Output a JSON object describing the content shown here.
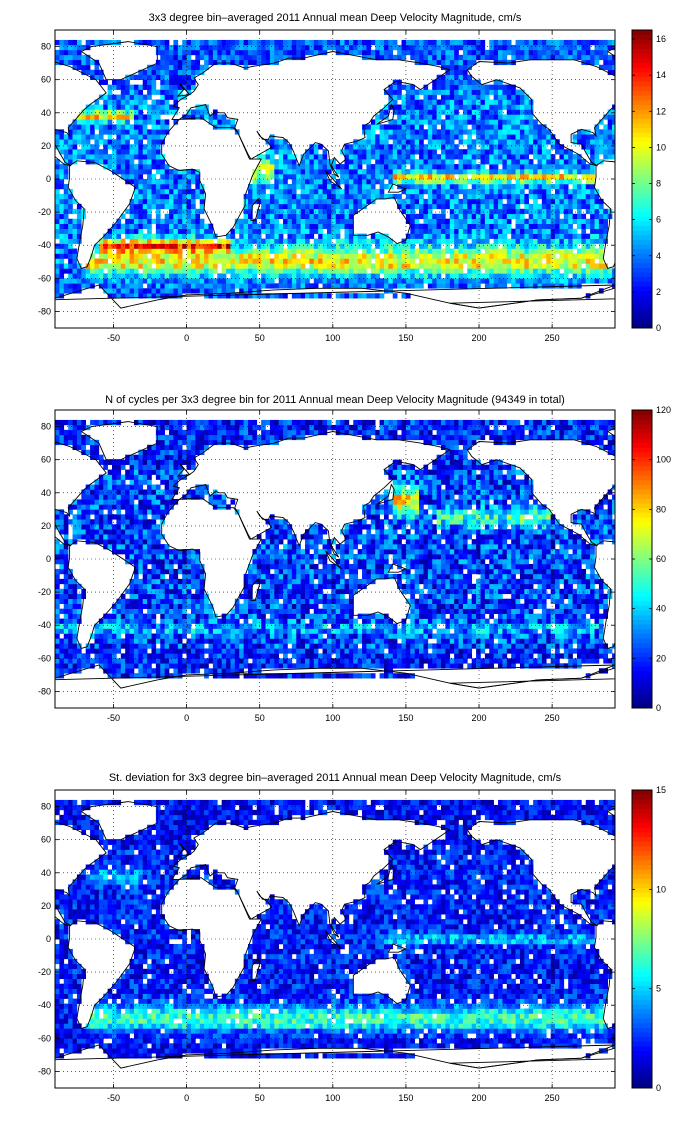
{
  "chart_data": [
    {
      "type": "heatmap",
      "title": "3x3 degree bin–averaged 2011 Annual mean Deep Velocity Magnitude, cm/s",
      "xlim": [
        -90,
        293
      ],
      "ylim": [
        -90,
        90
      ],
      "xticks": [
        -50,
        0,
        50,
        100,
        150,
        200,
        250
      ],
      "yticks": [
        -80,
        -60,
        -40,
        -20,
        0,
        20,
        40,
        60,
        80
      ],
      "xtick_labels": [
        "-50",
        "0",
        "50",
        "100",
        "150",
        "200",
        "250"
      ],
      "ytick_labels": [
        "-80",
        "-60",
        "-40",
        "-20",
        "0",
        "20",
        "40",
        "60",
        "80"
      ],
      "grid": "dotted",
      "colorbar": {
        "min": 0,
        "max": 16.5,
        "ticks": [
          0,
          2,
          4,
          6,
          8,
          10,
          12,
          14,
          16
        ],
        "tick_labels": [
          "0",
          "2",
          "4",
          "6",
          "8",
          "10",
          "12",
          "14",
          "16"
        ],
        "colormap": "jet"
      },
      "cell_size_deg": 3,
      "features": [
        {
          "name": "Antarctic Circumpolar Current",
          "lon": [
            -70,
            290
          ],
          "lat": -50,
          "width": 9,
          "value": 10.5
        },
        {
          "name": "Equatorial Pacific band",
          "lon": [
            140,
            280
          ],
          "lat": 1,
          "width": 3,
          "value": 11
        },
        {
          "name": "North Atlantic band",
          "lon": [
            -75,
            -35
          ],
          "lat": 38,
          "width": 3,
          "value": 11
        },
        {
          "name": "Agulhas / Southwest Atlantic",
          "lon": [
            -60,
            30
          ],
          "lat": -40,
          "width": 4,
          "value": 12
        },
        {
          "name": "Somali current",
          "lon": [
            45,
            60
          ],
          "lat": 5,
          "width": 6,
          "value": 10
        }
      ],
      "background_value": 4,
      "noise": 2.2
    },
    {
      "type": "heatmap",
      "title": "N of cycles per 3x3 degree bin for 2011 Annual mean Deep Velocity Magnitude (94349 in total)",
      "xlim": [
        -90,
        293
      ],
      "ylim": [
        -90,
        90
      ],
      "xticks": [
        -50,
        0,
        50,
        100,
        150,
        200,
        250
      ],
      "yticks": [
        -80,
        -60,
        -40,
        -20,
        0,
        20,
        40,
        60,
        80
      ],
      "xtick_labels": [
        "-50",
        "0",
        "50",
        "100",
        "150",
        "200",
        "250"
      ],
      "ytick_labels": [
        "-80",
        "-60",
        "-40",
        "-20",
        "0",
        "20",
        "40",
        "60",
        "80"
      ],
      "grid": "dotted",
      "colorbar": {
        "min": 0,
        "max": 120,
        "ticks": [
          0,
          20,
          40,
          60,
          80,
          100,
          120
        ],
        "tick_labels": [
          "0",
          "20",
          "40",
          "60",
          "80",
          "100",
          "120"
        ],
        "colormap": "jet"
      },
      "cell_size_deg": 3,
      "features": [
        {
          "name": "Kuroshio region",
          "lon": [
            140,
            160
          ],
          "lat": 35,
          "width": 8,
          "value": 80
        },
        {
          "name": "North Pacific band",
          "lon": [
            170,
            250
          ],
          "lat": 25,
          "width": 6,
          "value": 50
        },
        {
          "name": "Southern Ocean band",
          "lon": [
            -90,
            293
          ],
          "lat": -42,
          "width": 4,
          "value": 35
        }
      ],
      "background_value": 22,
      "noise": 18
    },
    {
      "type": "heatmap",
      "title": "St. deviation for 3x3 degree bin–averaged 2011 Annual mean Deep Velocity Magnitude, cm/s",
      "xlim": [
        -90,
        293
      ],
      "ylim": [
        -90,
        90
      ],
      "xticks": [
        -50,
        0,
        50,
        100,
        150,
        200,
        250
      ],
      "yticks": [
        -80,
        -60,
        -40,
        -20,
        0,
        20,
        40,
        60,
        80
      ],
      "xtick_labels": [
        "-50",
        "0",
        "50",
        "100",
        "150",
        "200",
        "250"
      ],
      "ytick_labels": [
        "-80",
        "-60",
        "-40",
        "-20",
        "0",
        "20",
        "40",
        "60",
        "80"
      ],
      "grid": "dotted",
      "colorbar": {
        "min": 0,
        "max": 15,
        "ticks": [
          0,
          5,
          10,
          15
        ],
        "tick_labels": [
          "0",
          "5",
          "10",
          "15"
        ],
        "colormap": "jet"
      },
      "cell_size_deg": 3,
      "features": [
        {
          "name": "Southern Ocean band",
          "lon": [
            -70,
            290
          ],
          "lat": -48,
          "width": 8,
          "value": 6.5
        },
        {
          "name": "Equatorial band",
          "lon": [
            130,
            293
          ],
          "lat": 0,
          "width": 3,
          "value": 5
        },
        {
          "name": "North Atlantic",
          "lon": [
            -70,
            -30
          ],
          "lat": 38,
          "width": 5,
          "value": 4.5
        }
      ],
      "background_value": 2.2,
      "noise": 1.6
    }
  ]
}
